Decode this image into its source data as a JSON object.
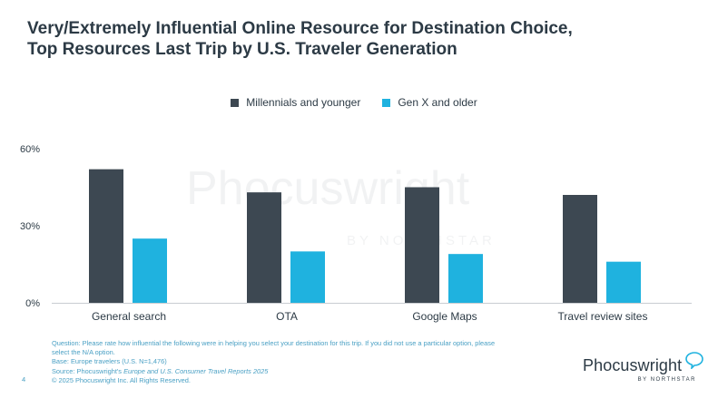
{
  "header": {
    "title_line1": "Very/Extremely Influential Online Resource for Destination Choice,",
    "title_line2": "Top Resources Last Trip by U.S. Traveler Generation"
  },
  "chart_data": {
    "type": "bar",
    "categories": [
      "General search",
      "OTA",
      "Google Maps",
      "Travel review sites"
    ],
    "series": [
      {
        "name": "Millennials and younger",
        "values": [
          52,
          43,
          45,
          42
        ],
        "color": "#3d4852"
      },
      {
        "name": "Gen X and older",
        "values": [
          25,
          20,
          19,
          16
        ],
        "color": "#1fb2df"
      }
    ],
    "yticks": [
      "0%",
      "30%",
      "60%"
    ],
    "ylim": [
      0,
      60
    ],
    "grid": false,
    "legend_position": "top-center",
    "watermark": {
      "brand": "Phocuswright",
      "sub": "BY NORTHSTAR"
    }
  },
  "footnote": {
    "line1": "Question: Please rate how influential the following were in helping you select your destination for this trip. If you did not use a particular option, please",
    "line2": "select the N/A option.",
    "line3": "Base: Europe travelers (U.S. N=1,476)",
    "source_prefix": "Source: Phocuswright's ",
    "source_title": "Europe and U.S. Consumer Travel Reports 2025",
    "copyright": "© 2025 Phocuswright Inc. All Rights Reserved."
  },
  "page_number": "4",
  "logo": {
    "brand": "Phocuswright",
    "sub": "BY NORTHSTAR"
  }
}
